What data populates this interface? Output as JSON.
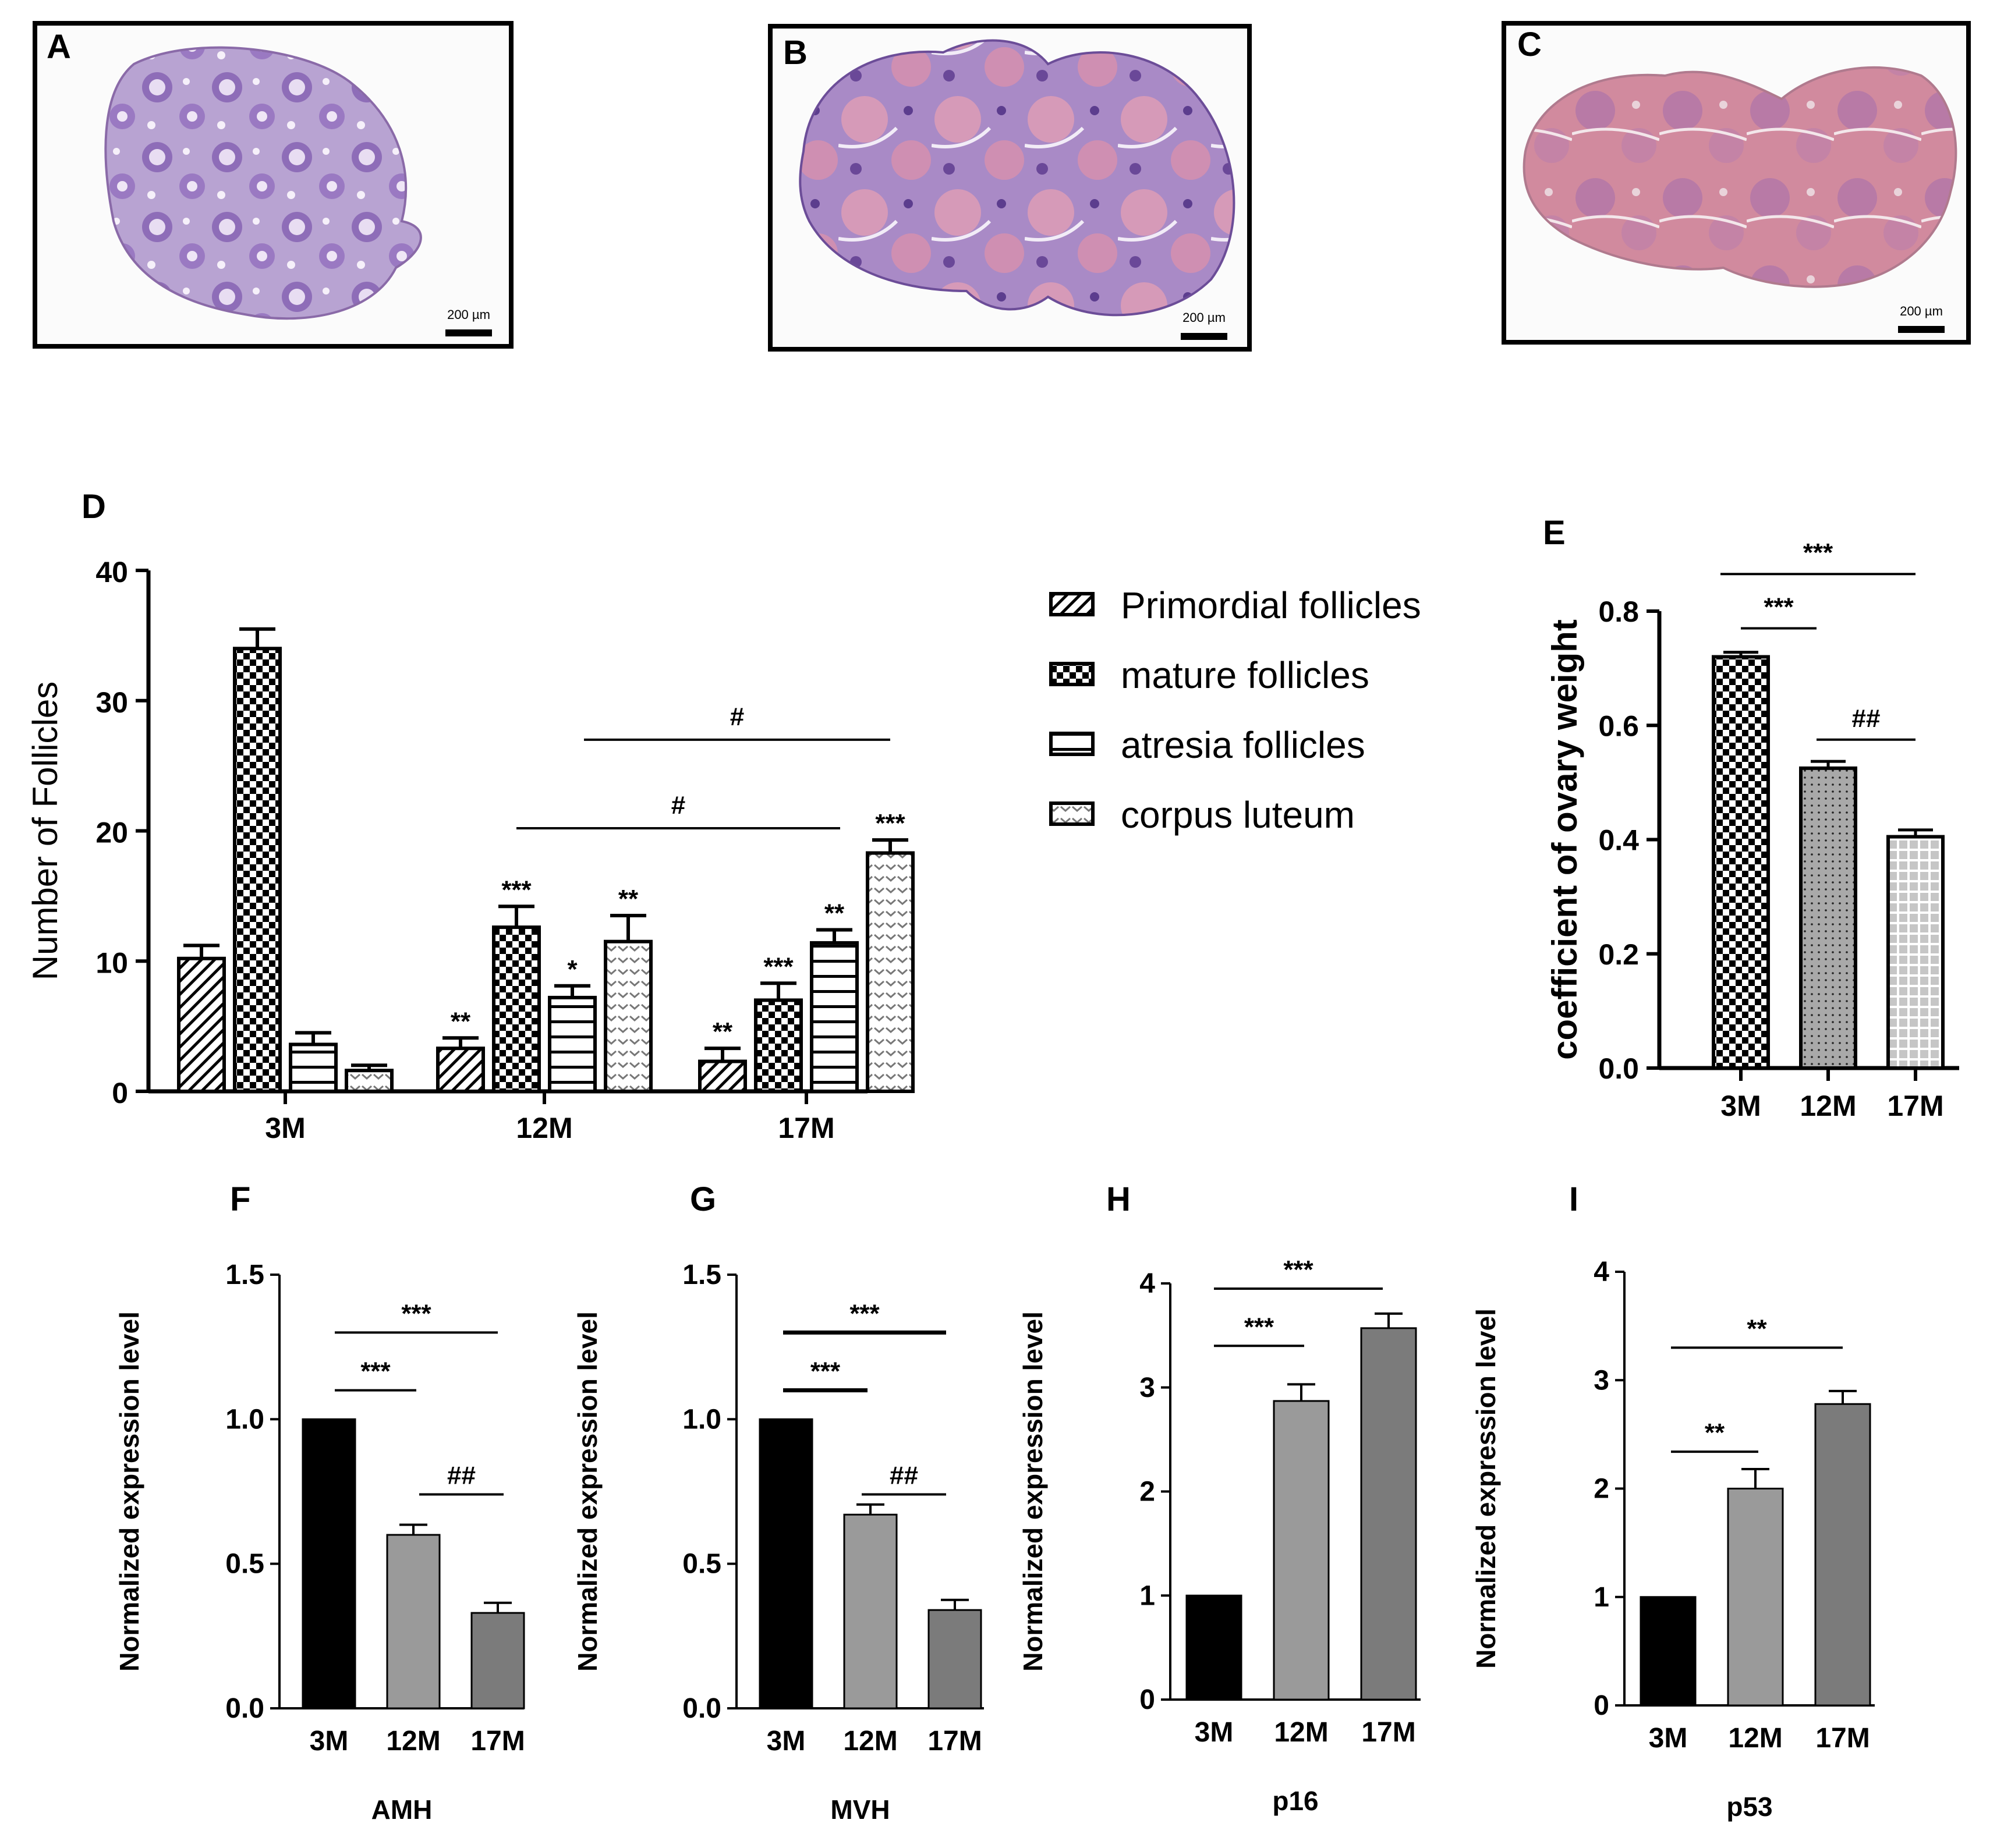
{
  "panels": {
    "A": {
      "label": "A",
      "scale_label": "200 µm"
    },
    "B": {
      "label": "B",
      "scale_label": "200 µm"
    },
    "C": {
      "label": "C",
      "scale_label": "200 µm"
    }
  },
  "colors": {
    "black": "#000000",
    "gray_light": "#9a9a9a",
    "gray_dark": "#7b7b7b"
  },
  "chart_data": [
    {
      "id": "D",
      "label": "D",
      "type": "bar",
      "categories": [
        "3M",
        "12M",
        "17M"
      ],
      "ylabel": "Number of Follicles",
      "xlabel": "",
      "ylim": [
        0,
        40
      ],
      "yticks": [
        "0",
        "10",
        "20",
        "30",
        "40"
      ],
      "legend_position": "right",
      "series": [
        {
          "name": "Primordial follicles",
          "pattern": "diagonal-hatch",
          "values": [
            10.2,
            3.3,
            2.3
          ],
          "errors": [
            1.0,
            0.8,
            1.0
          ],
          "significance": [
            "",
            "**",
            "**"
          ]
        },
        {
          "name": "mature follicles",
          "pattern": "checkerboard",
          "values": [
            34.0,
            12.6,
            7.0
          ],
          "errors": [
            1.5,
            1.6,
            1.3
          ],
          "significance": [
            "",
            "***",
            "***"
          ]
        },
        {
          "name": "atresia follicles",
          "pattern": "horizontal-lines",
          "values": [
            3.6,
            7.2,
            11.4
          ],
          "errors": [
            0.9,
            0.9,
            1.0
          ],
          "significance": [
            "",
            "*",
            "**"
          ]
        },
        {
          "name": "corpus luteum",
          "pattern": "chevron",
          "values": [
            1.6,
            11.5,
            18.3
          ],
          "errors": [
            0.4,
            2.0,
            1.0
          ],
          "significance": [
            "",
            "**",
            "***"
          ]
        }
      ],
      "comparisons": [
        {
          "label": "#",
          "from": "12M",
          "to": "17M"
        },
        {
          "label": "#",
          "from": "12M",
          "to": "17M"
        }
      ]
    },
    {
      "id": "E",
      "label": "E",
      "type": "bar",
      "categories": [
        "3M",
        "12M",
        "17M"
      ],
      "ylabel": "coefficient of ovary weight",
      "ylim": [
        0,
        0.8
      ],
      "yticks": [
        "0.0",
        "0.2",
        "0.4",
        "0.6",
        "0.8"
      ],
      "values": [
        0.72,
        0.525,
        0.405
      ],
      "errors": [
        0.008,
        0.012,
        0.012
      ],
      "patterns": [
        "checkerboard",
        "dots",
        "grid"
      ],
      "comparisons": [
        {
          "label": "***",
          "from": "3M",
          "to": "12M"
        },
        {
          "label": "***",
          "from": "3M",
          "to": "17M"
        },
        {
          "label": "##",
          "from": "12M",
          "to": "17M"
        }
      ]
    },
    {
      "id": "F",
      "label": "F",
      "type": "bar",
      "gene": "AMH",
      "categories": [
        "3M",
        "12M",
        "17M"
      ],
      "ylabel": "Normalized expression level",
      "ylim": [
        0,
        1.5
      ],
      "yticks": [
        "0.0",
        "0.5",
        "1.0",
        "1.5"
      ],
      "values": [
        1.0,
        0.6,
        0.33
      ],
      "errors": [
        0,
        0.035,
        0.035
      ],
      "comparisons": [
        {
          "label": "***",
          "from": "3M",
          "to": "12M"
        },
        {
          "label": "***",
          "from": "3M",
          "to": "17M"
        },
        {
          "label": "##",
          "from": "12M",
          "to": "17M"
        }
      ]
    },
    {
      "id": "G",
      "label": "G",
      "type": "bar",
      "gene": "MVH",
      "categories": [
        "3M",
        "12M",
        "17M"
      ],
      "ylabel": "Normalized expression level",
      "ylim": [
        0,
        1.5
      ],
      "yticks": [
        "0.0",
        "0.5",
        "1.0",
        "1.5"
      ],
      "values": [
        1.0,
        0.67,
        0.34
      ],
      "errors": [
        0,
        0.035,
        0.035
      ],
      "comparisons": [
        {
          "label": "***",
          "from": "3M",
          "to": "12M"
        },
        {
          "label": "***",
          "from": "3M",
          "to": "17M"
        },
        {
          "label": "##",
          "from": "12M",
          "to": "17M"
        }
      ]
    },
    {
      "id": "H",
      "label": "H",
      "type": "bar",
      "gene": "p16",
      "categories": [
        "3M",
        "12M",
        "17M"
      ],
      "ylabel": "Normalized expression level",
      "ylim": [
        0,
        4
      ],
      "yticks": [
        "0",
        "1",
        "2",
        "3",
        "4"
      ],
      "values": [
        1.0,
        2.87,
        3.57
      ],
      "errors": [
        0,
        0.16,
        0.14
      ],
      "comparisons": [
        {
          "label": "***",
          "from": "3M",
          "to": "12M"
        },
        {
          "label": "***",
          "from": "3M",
          "to": "17M"
        }
      ]
    },
    {
      "id": "I",
      "label": "I",
      "type": "bar",
      "gene": "p53",
      "categories": [
        "3M",
        "12M",
        "17M"
      ],
      "ylabel": "Normalized expression level",
      "ylim": [
        0,
        4
      ],
      "yticks": [
        "0",
        "1",
        "2",
        "3",
        "4"
      ],
      "values": [
        1.0,
        2.0,
        2.78
      ],
      "errors": [
        0,
        0.18,
        0.12
      ],
      "comparisons": [
        {
          "label": "**",
          "from": "3M",
          "to": "12M"
        },
        {
          "label": "**",
          "from": "3M",
          "to": "17M"
        }
      ]
    }
  ]
}
